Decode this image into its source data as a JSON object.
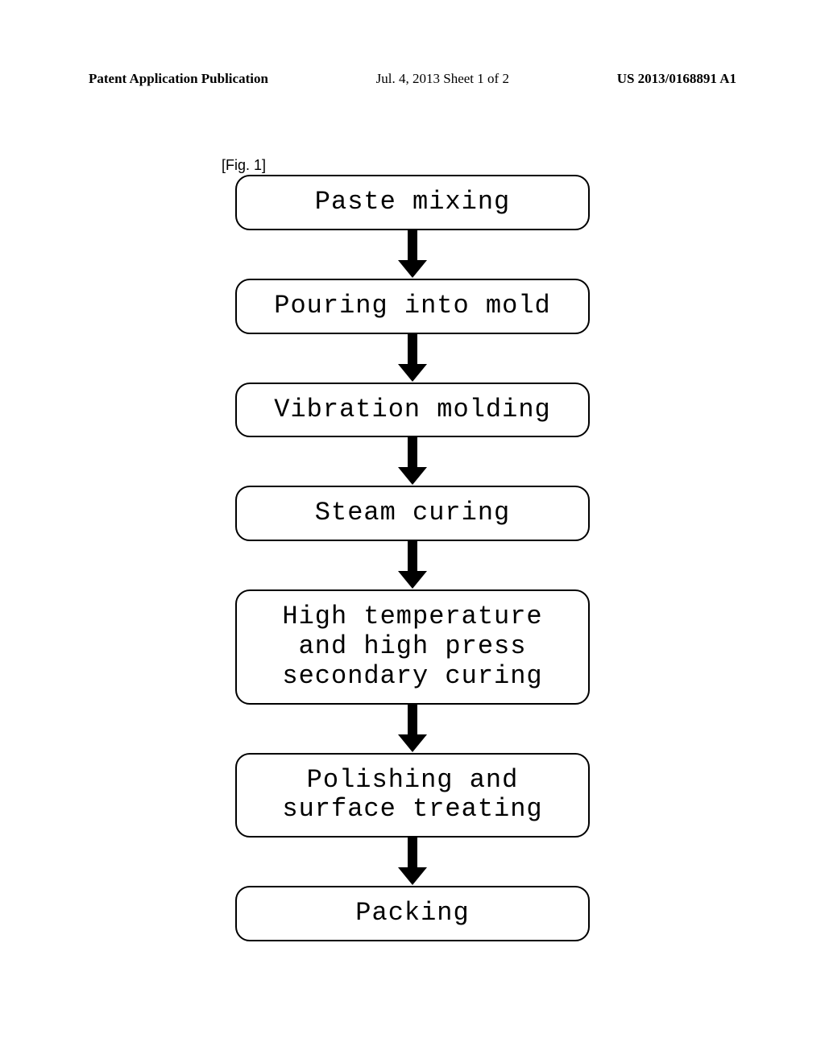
{
  "header": {
    "left": "Patent Application Publication",
    "center": "Jul. 4, 2013  Sheet 1 of 2",
    "right": "US 2013/0168891 A1"
  },
  "figure_label": "[Fig. 1]",
  "flowchart": {
    "type": "flowchart",
    "background_color": "#ffffff",
    "box_border_color": "#000000",
    "box_border_width": 2.5,
    "box_border_radius": 18,
    "box_min_width": 440,
    "box_font_family": "Courier New",
    "box_font_size": 32,
    "arrow_color": "#000000",
    "arrow_shaft_width": 12,
    "arrow_shaft_height": 38,
    "arrow_head_width": 36,
    "arrow_head_height": 22,
    "nodes": [
      {
        "id": "n1",
        "label": "Paste mixing"
      },
      {
        "id": "n2",
        "label": "Pouring into mold"
      },
      {
        "id": "n3",
        "label": "Vibration molding"
      },
      {
        "id": "n4",
        "label": "Steam curing"
      },
      {
        "id": "n5",
        "label": "High temperature\nand high press\nsecondary curing"
      },
      {
        "id": "n6",
        "label": "Polishing and\nsurface treating"
      },
      {
        "id": "n7",
        "label": "Packing"
      }
    ],
    "edges": [
      {
        "from": "n1",
        "to": "n2"
      },
      {
        "from": "n2",
        "to": "n3"
      },
      {
        "from": "n3",
        "to": "n4"
      },
      {
        "from": "n4",
        "to": "n5"
      },
      {
        "from": "n5",
        "to": "n6"
      },
      {
        "from": "n6",
        "to": "n7"
      }
    ]
  }
}
